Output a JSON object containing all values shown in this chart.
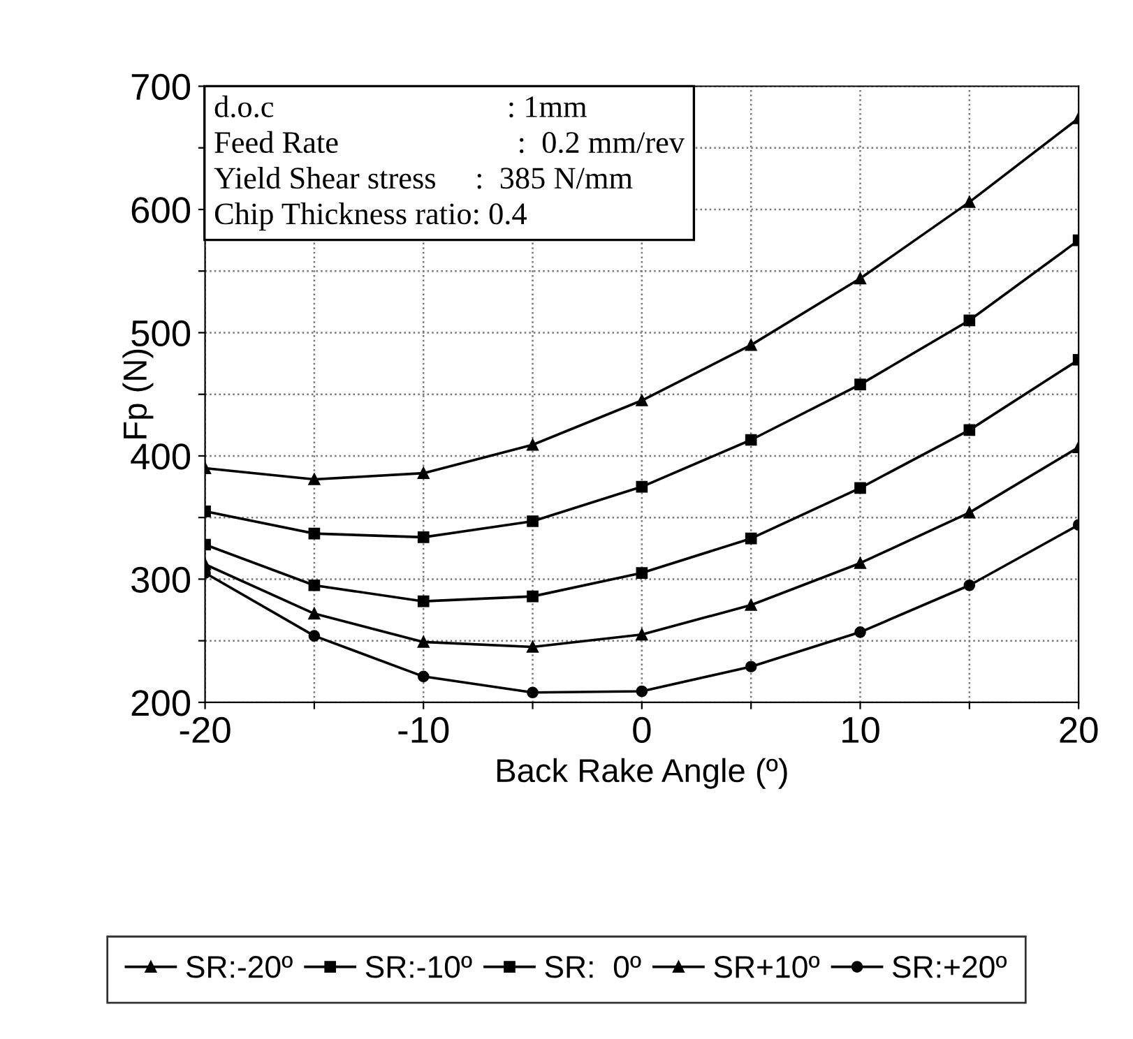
{
  "chart_data": {
    "type": "line",
    "xlabel": "Back Rake Angle (º)",
    "ylabel": "Fp (N)",
    "x": [
      -20,
      -15,
      -10,
      -5,
      0,
      5,
      10,
      15,
      20
    ],
    "series": [
      {
        "name": "SR:-20º",
        "color": "#000000",
        "marker": "triangle",
        "values": [
          390,
          381,
          386,
          409,
          445,
          490,
          544,
          606,
          674
        ]
      },
      {
        "name": "SR:-10º",
        "color": "#000000",
        "marker": "square",
        "values": [
          355,
          337,
          334,
          347,
          375,
          413,
          458,
          510,
          575
        ]
      },
      {
        "name": "SR:  0º",
        "color": "#000000",
        "marker": "square",
        "values": [
          328,
          295,
          282,
          286,
          305,
          333,
          374,
          421,
          478
        ]
      },
      {
        "name": "SR+10º",
        "color": "#000000",
        "marker": "triangle",
        "values": [
          312,
          272,
          249,
          245,
          255,
          279,
          313,
          354,
          407
        ]
      },
      {
        "name": "SR:+20º",
        "color": "#000000",
        "marker": "circle",
        "values": [
          305,
          254,
          221,
          208,
          209,
          229,
          257,
          295,
          344
        ]
      }
    ],
    "xlim": [
      -20,
      20
    ],
    "xticks": [
      -20,
      {
        "value": -15,
        "label": null
      },
      -10,
      {
        "value": -5,
        "label": null
      },
      0,
      {
        "value": 5,
        "label": null
      },
      10,
      {
        "value": 15,
        "label": null
      },
      20
    ],
    "ylim": [
      200,
      700
    ],
    "yticks": [
      200,
      {
        "value": 250,
        "label": null
      },
      300,
      {
        "value": 350,
        "label": null
      },
      400,
      {
        "value": 450,
        "label": null
      },
      500,
      {
        "value": 550,
        "label": null
      },
      600,
      {
        "value": 650,
        "label": null
      },
      700
    ],
    "grid": true,
    "legend": "bottom",
    "line_style": "solid",
    "annotations": [
      "d.o.c                              : 1mm",
      "Feed Rate                       :  0.2 mm/rev",
      "Yield Shear stress     :  385 N/mm",
      "Chip Thickness ratio: 0.4"
    ]
  }
}
